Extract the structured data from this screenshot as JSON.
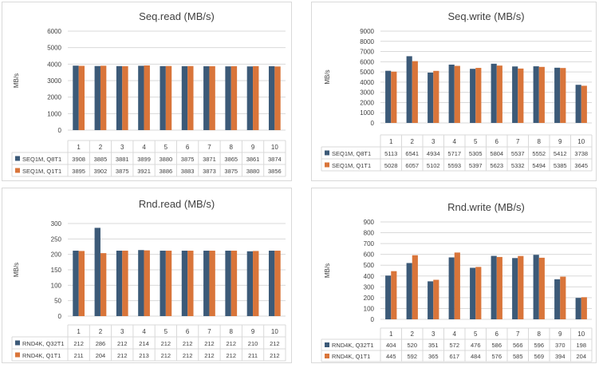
{
  "colors": {
    "series1": "#3c5a78",
    "series2": "#d9753a",
    "grid": "#d9d9d9",
    "axis_text": "#404040"
  },
  "chart_data": [
    {
      "type": "bar",
      "title": "Seq.read (MB/s)",
      "ylabel": "MB/s",
      "ylim": [
        0,
        6000
      ],
      "yticks": [
        0,
        1000,
        2000,
        3000,
        4000,
        5000,
        6000
      ],
      "grid": true,
      "legend": "data-table-bottom",
      "categories": [
        "1",
        "2",
        "3",
        "4",
        "5",
        "6",
        "7",
        "8",
        "9",
        "10"
      ],
      "series": [
        {
          "name": "SEQ1M, Q8T1",
          "values": [
            3908,
            3885,
            3881,
            3899,
            3880,
            3875,
            3871,
            3865,
            3861,
            3874
          ]
        },
        {
          "name": "SEQ1M, Q1T1",
          "values": [
            3895,
            3902,
            3875,
            3921,
            3886,
            3883,
            3873,
            3875,
            3880,
            3856
          ]
        }
      ]
    },
    {
      "type": "bar",
      "title": "Seq.write (MB/s)",
      "ylabel": "MB/s",
      "ylim": [
        0,
        9000
      ],
      "yticks": [
        0,
        1000,
        2000,
        3000,
        4000,
        5000,
        6000,
        7000,
        8000,
        9000
      ],
      "grid": true,
      "legend": "data-table-bottom",
      "categories": [
        "1",
        "2",
        "3",
        "4",
        "5",
        "6",
        "7",
        "8",
        "9",
        "10"
      ],
      "series": [
        {
          "name": "SEQ1M, Q8T1",
          "values": [
            5113,
            6541,
            4934,
            5717,
            5305,
            5804,
            5537,
            5552,
            5412,
            3738
          ]
        },
        {
          "name": "SEQ1M, Q1T1",
          "values": [
            5028,
            6057,
            5102,
            5593,
            5397,
            5623,
            5332,
            5494,
            5385,
            3645
          ]
        }
      ]
    },
    {
      "type": "bar",
      "title": "Rnd.read (MB/s)",
      "ylabel": "MB/s",
      "ylim": [
        0,
        300
      ],
      "yticks": [
        0,
        50,
        100,
        150,
        200,
        250,
        300
      ],
      "grid": true,
      "legend": "data-table-bottom",
      "categories": [
        "1",
        "2",
        "3",
        "4",
        "5",
        "6",
        "7",
        "8",
        "9",
        "10"
      ],
      "series": [
        {
          "name": "RND4K, Q32T1",
          "values": [
            212,
            286,
            212,
            214,
            212,
            212,
            212,
            212,
            210,
            212
          ]
        },
        {
          "name": "RND4K, Q1T1",
          "values": [
            211,
            204,
            212,
            213,
            212,
            212,
            212,
            212,
            211,
            212
          ]
        }
      ]
    },
    {
      "type": "bar",
      "title": "Rnd.write (MB/s)",
      "ylabel": "MB/s",
      "ylim": [
        0,
        900
      ],
      "yticks": [
        0,
        100,
        200,
        300,
        400,
        500,
        600,
        700,
        800,
        900
      ],
      "grid": true,
      "legend": "data-table-bottom",
      "categories": [
        "1",
        "2",
        "3",
        "4",
        "5",
        "6",
        "7",
        "8",
        "9",
        "10"
      ],
      "series": [
        {
          "name": "RND4K, Q32T1",
          "values": [
            404,
            520,
            351,
            572,
            476,
            586,
            566,
            596,
            370,
            198
          ]
        },
        {
          "name": "RND4K, Q1T1",
          "values": [
            445,
            592,
            365,
            617,
            484,
            576,
            585,
            569,
            394,
            204
          ]
        }
      ]
    }
  ]
}
